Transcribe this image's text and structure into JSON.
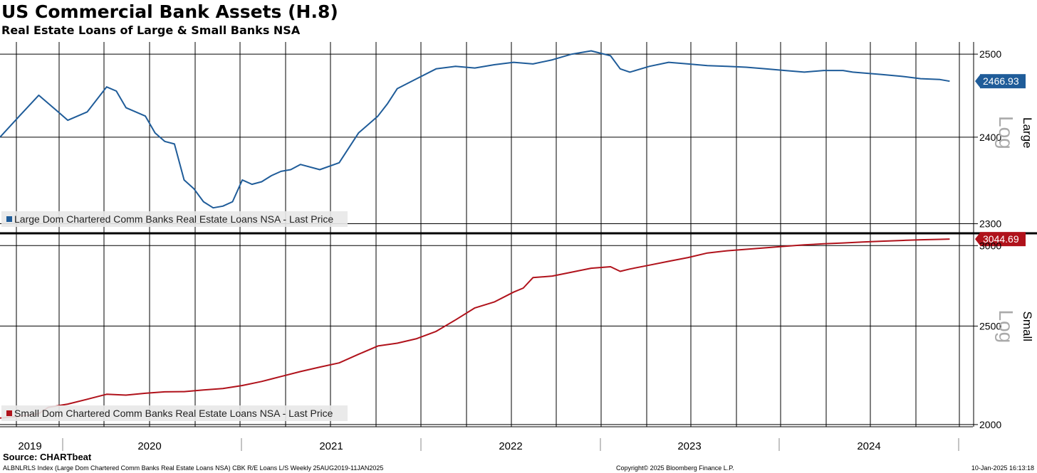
{
  "header": {
    "title": "US Commercial Bank Assets (H.8)",
    "subtitle": "Real Estate Loans of Large & Small Banks NSA"
  },
  "footer": {
    "source": "Source: CHARTbeat",
    "ticker_desc": "ALBNLRLS Index (Large Dom Chartered Comm Banks Real Estate Loans NSA) CBK R/E Loans L/S  Weekly 25AUG2019-11JAN2025",
    "copyright": "Copyright© 2025 Bloomberg Finance L.P.",
    "timestamp": "10-Jan-2025 16:13:18"
  },
  "chart_data": [
    {
      "type": "line",
      "panel": "Large",
      "scale_label": "Log",
      "log_scale": true,
      "ylim": [
        2290,
        2515
      ],
      "yticks": [
        2300,
        2400,
        2500
      ],
      "grid": true,
      "legend": "Large Dom Chartered Comm Banks Real Estate Loans NSA - Last Price",
      "legend_position": "bottom-left",
      "color": "#1f5c99",
      "last_value": "2466.93",
      "x": [
        2019.65,
        2019.75,
        2019.85,
        2019.95,
        2020.0,
        2020.1,
        2020.2,
        2020.25,
        2020.3,
        2020.4,
        2020.45,
        2020.5,
        2020.55,
        2020.6,
        2020.65,
        2020.7,
        2020.75,
        2020.8,
        2020.85,
        2020.9,
        2020.95,
        2021.0,
        2021.05,
        2021.1,
        2021.15,
        2021.2,
        2021.3,
        2021.4,
        2021.5,
        2021.6,
        2021.65,
        2021.7,
        2021.8,
        2021.9,
        2022.0,
        2022.1,
        2022.2,
        2022.3,
        2022.4,
        2022.5,
        2022.6,
        2022.7,
        2022.8,
        2022.85,
        2022.9,
        2023.0,
        2023.1,
        2023.2,
        2023.3,
        2023.4,
        2023.5,
        2023.6,
        2023.7,
        2023.8,
        2023.9,
        2024.0,
        2024.05,
        2024.1,
        2024.2,
        2024.3,
        2024.4,
        2024.5,
        2024.55
      ],
      "series": [
        {
          "name": "Large Dom Chartered Comm Banks Real Estate Loans NSA",
          "values": [
            2400,
            2425,
            2450,
            2430,
            2420,
            2430,
            2460,
            2455,
            2435,
            2425,
            2405,
            2395,
            2392,
            2350,
            2340,
            2325,
            2318,
            2320,
            2325,
            2350,
            2345,
            2348,
            2355,
            2360,
            2362,
            2368,
            2362,
            2370,
            2405,
            2425,
            2440,
            2458,
            2470,
            2482,
            2485,
            2483,
            2487,
            2490,
            2488,
            2493,
            2500,
            2504,
            2498,
            2482,
            2478,
            2485,
            2490,
            2488,
            2486,
            2485,
            2484,
            2482,
            2480,
            2478,
            2480,
            2480,
            2478,
            2477,
            2475,
            2473,
            2470,
            2469,
            2466.93
          ]
        }
      ],
      "x_label_years": [
        "2019",
        "2020",
        "2021",
        "2022",
        "2023",
        "2024"
      ]
    },
    {
      "type": "line",
      "panel": "Small",
      "scale_label": "Log",
      "log_scale": true,
      "ylim": [
        1990,
        3070
      ],
      "yticks": [
        2000,
        2500,
        3000
      ],
      "grid": true,
      "legend": "Small Dom Chartered Comm Banks Real Estate Loans NSA - Last Price",
      "legend_position": "bottom-left",
      "color": "#b0121b",
      "last_value": "3044.69",
      "x": [
        2019.65,
        2019.75,
        2019.85,
        2019.9,
        2020.0,
        2020.1,
        2020.2,
        2020.3,
        2020.4,
        2020.5,
        2020.6,
        2020.7,
        2020.8,
        2020.9,
        2021.0,
        2021.1,
        2021.2,
        2021.3,
        2021.4,
        2021.5,
        2021.6,
        2021.7,
        2021.8,
        2021.9,
        2022.0,
        2022.1,
        2022.2,
        2022.3,
        2022.35,
        2022.4,
        2022.5,
        2022.6,
        2022.7,
        2022.8,
        2022.85,
        2022.9,
        2023.0,
        2023.1,
        2023.2,
        2023.3,
        2023.4,
        2023.5,
        2023.6,
        2023.7,
        2023.8,
        2023.9,
        2024.0,
        2024.1,
        2024.2,
        2024.3,
        2024.4,
        2024.5,
        2024.55
      ],
      "series": [
        {
          "name": "Small Dom Chartered Comm Banks Real Estate Loans NSA",
          "values": [
            2030,
            2038,
            2050,
            2080,
            2095,
            2118,
            2142,
            2138,
            2147,
            2154,
            2155,
            2163,
            2170,
            2185,
            2205,
            2230,
            2255,
            2278,
            2300,
            2345,
            2390,
            2405,
            2430,
            2470,
            2535,
            2605,
            2640,
            2700,
            2725,
            2790,
            2800,
            2825,
            2850,
            2860,
            2830,
            2845,
            2870,
            2895,
            2920,
            2950,
            2965,
            2975,
            2985,
            2995,
            3005,
            3012,
            3018,
            3025,
            3030,
            3035,
            3040,
            3043,
            3044.69
          ]
        }
      ]
    }
  ]
}
